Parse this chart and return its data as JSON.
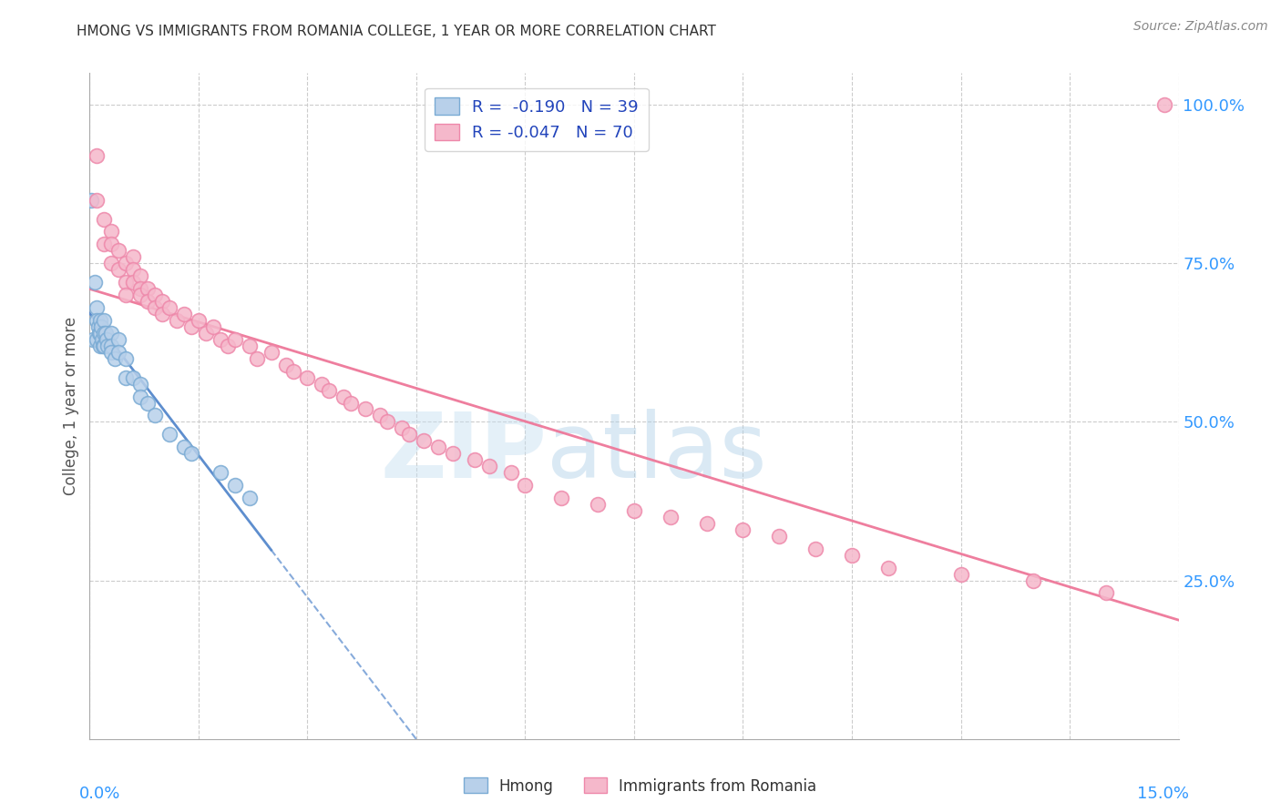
{
  "title": "HMONG VS IMMIGRANTS FROM ROMANIA COLLEGE, 1 YEAR OR MORE CORRELATION CHART",
  "source": "Source: ZipAtlas.com",
  "ylabel": "College, 1 year or more",
  "right_yticks": [
    "25.0%",
    "50.0%",
    "75.0%",
    "100.0%"
  ],
  "right_ytick_vals": [
    0.25,
    0.5,
    0.75,
    1.0
  ],
  "xlim": [
    0.0,
    0.15
  ],
  "ylim": [
    0.0,
    1.05
  ],
  "legend_r_hmong": "-0.190",
  "legend_n_hmong": "39",
  "legend_r_romania": "-0.047",
  "legend_n_romania": "70",
  "hmong_fill": "#b8d0ea",
  "hmong_edge": "#7aabd4",
  "romania_fill": "#f5b8cb",
  "romania_edge": "#ee88aa",
  "hmong_line_color": "#5588cc",
  "romania_line_color": "#ee7799",
  "watermark_zip": "ZIP",
  "watermark_atlas": "atlas",
  "watermark_color_zip": "#c8dff0",
  "watermark_color_atlas": "#b0cce8",
  "background_color": "#ffffff",
  "hmong_x": [
    0.0002,
    0.0005,
    0.0007,
    0.001,
    0.001,
    0.001,
    0.0012,
    0.0013,
    0.0014,
    0.0015,
    0.0015,
    0.0016,
    0.0017,
    0.0018,
    0.002,
    0.002,
    0.002,
    0.0022,
    0.0023,
    0.0025,
    0.003,
    0.003,
    0.003,
    0.0035,
    0.004,
    0.004,
    0.005,
    0.005,
    0.006,
    0.007,
    0.007,
    0.008,
    0.009,
    0.011,
    0.013,
    0.014,
    0.018,
    0.02,
    0.022
  ],
  "hmong_y": [
    0.85,
    0.63,
    0.72,
    0.68,
    0.66,
    0.63,
    0.65,
    0.64,
    0.62,
    0.66,
    0.64,
    0.65,
    0.63,
    0.62,
    0.66,
    0.64,
    0.62,
    0.64,
    0.63,
    0.62,
    0.64,
    0.62,
    0.61,
    0.6,
    0.63,
    0.61,
    0.6,
    0.57,
    0.57,
    0.56,
    0.54,
    0.53,
    0.51,
    0.48,
    0.46,
    0.45,
    0.42,
    0.4,
    0.38
  ],
  "romania_x": [
    0.001,
    0.001,
    0.002,
    0.002,
    0.003,
    0.003,
    0.003,
    0.004,
    0.004,
    0.005,
    0.005,
    0.005,
    0.006,
    0.006,
    0.006,
    0.007,
    0.007,
    0.007,
    0.008,
    0.008,
    0.009,
    0.009,
    0.01,
    0.01,
    0.011,
    0.012,
    0.013,
    0.014,
    0.015,
    0.016,
    0.017,
    0.018,
    0.019,
    0.02,
    0.022,
    0.023,
    0.025,
    0.027,
    0.028,
    0.03,
    0.032,
    0.033,
    0.035,
    0.036,
    0.038,
    0.04,
    0.041,
    0.043,
    0.044,
    0.046,
    0.048,
    0.05,
    0.053,
    0.055,
    0.058,
    0.06,
    0.065,
    0.07,
    0.075,
    0.08,
    0.085,
    0.09,
    0.095,
    0.1,
    0.105,
    0.11,
    0.12,
    0.13,
    0.14,
    0.148
  ],
  "romania_y": [
    0.92,
    0.85,
    0.82,
    0.78,
    0.8,
    0.78,
    0.75,
    0.77,
    0.74,
    0.75,
    0.72,
    0.7,
    0.76,
    0.74,
    0.72,
    0.73,
    0.71,
    0.7,
    0.71,
    0.69,
    0.7,
    0.68,
    0.69,
    0.67,
    0.68,
    0.66,
    0.67,
    0.65,
    0.66,
    0.64,
    0.65,
    0.63,
    0.62,
    0.63,
    0.62,
    0.6,
    0.61,
    0.59,
    0.58,
    0.57,
    0.56,
    0.55,
    0.54,
    0.53,
    0.52,
    0.51,
    0.5,
    0.49,
    0.48,
    0.47,
    0.46,
    0.45,
    0.44,
    0.43,
    0.42,
    0.4,
    0.38,
    0.37,
    0.36,
    0.35,
    0.34,
    0.33,
    0.32,
    0.3,
    0.29,
    0.27,
    0.26,
    0.25,
    0.23,
    1.0
  ]
}
